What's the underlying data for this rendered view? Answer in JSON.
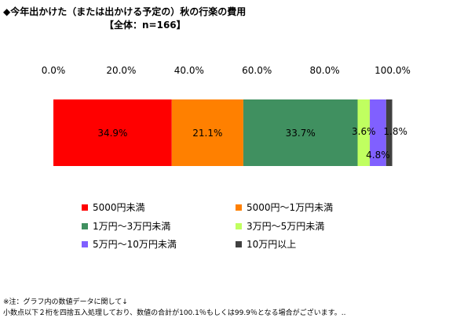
{
  "title": "◆今年出かけた（または出かける予定の）秋の行楽の費用",
  "subtitle": "【全体：n=166】",
  "chart_data": {
    "type": "bar",
    "orientation": "horizontal-stacked",
    "xlim": [
      0,
      100
    ],
    "ticks": [
      "0.0%",
      "20.0%",
      "40.0%",
      "60.0%",
      "80.0%",
      "100.0%"
    ],
    "grid": false,
    "legend": "bottom",
    "series": [
      {
        "name": "5000円未満",
        "value": 34.9,
        "label": "34.9%",
        "color": "#ff0000"
      },
      {
        "name": "5000円～1万円未満",
        "value": 21.1,
        "label": "21.1%",
        "color": "#ff8000"
      },
      {
        "name": "1万円～3万円未満",
        "value": 33.7,
        "label": "33.7%",
        "color": "#409060"
      },
      {
        "name": "3万円～5万円未満",
        "value": 3.6,
        "label": "3.6%",
        "color": "#c0ff60"
      },
      {
        "name": "5万円～10万円未満",
        "value": 4.8,
        "label": "4.8%",
        "color": "#8060ff"
      },
      {
        "name": "10万円以上",
        "value": 1.8,
        "label": "1.8%",
        "color": "#404040"
      }
    ]
  },
  "note": {
    "line1": "※注：グラフ内の数値データに関して↓",
    "line2": "小数点以下２桁を四捨五入処理しており、数値の合計が100.1％もしくは99.9％となる場合がございます。.."
  }
}
